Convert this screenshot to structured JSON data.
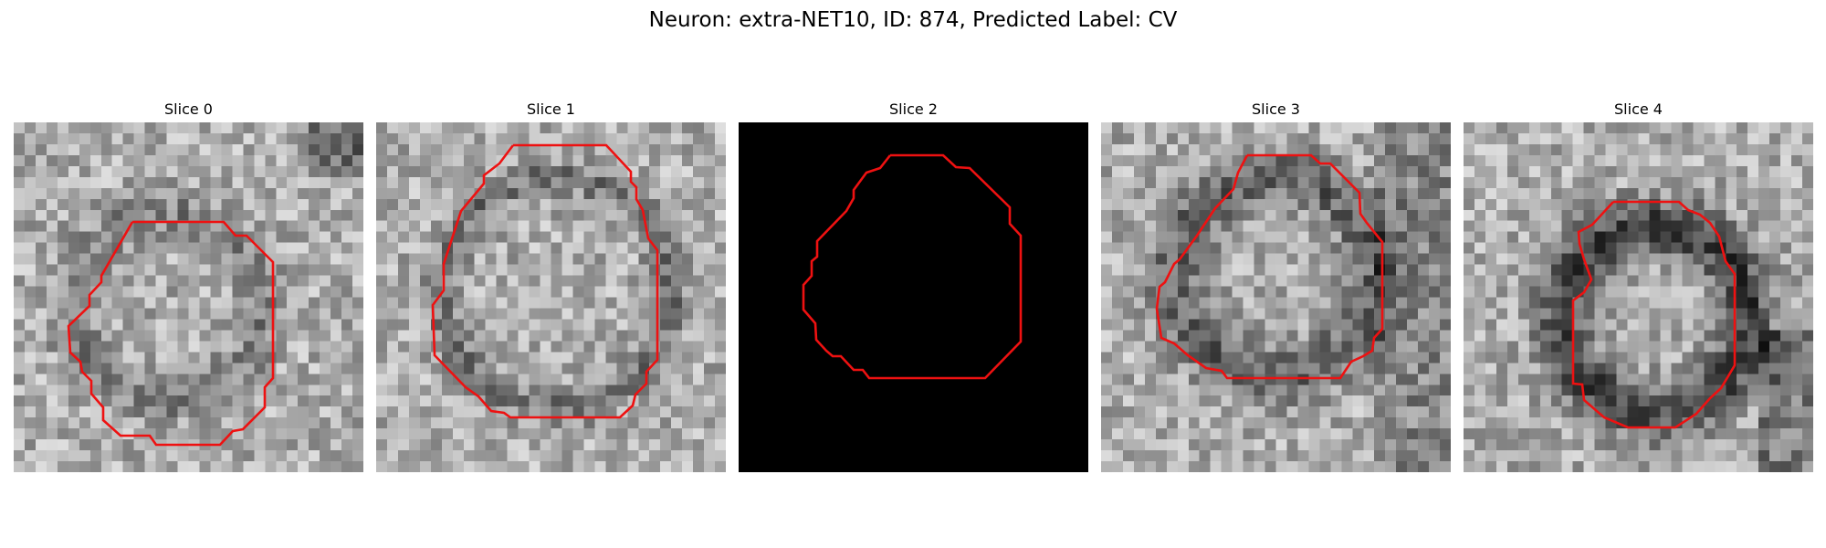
{
  "figure": {
    "title": "Neuron: extra-NET10, ID: 874, Predicted Label: CV"
  },
  "contour_color": "#ee1111",
  "panels": [
    {
      "title": "Slice 0",
      "image": "grayscale-em-patch",
      "blank": false
    },
    {
      "title": "Slice 1",
      "image": "grayscale-em-patch",
      "blank": false
    },
    {
      "title": "Slice 2",
      "image": "black-patch",
      "blank": true
    },
    {
      "title": "Slice 3",
      "image": "grayscale-em-patch",
      "blank": false
    },
    {
      "title": "Slice 4",
      "image": "grayscale-em-patch",
      "blank": false
    }
  ]
}
